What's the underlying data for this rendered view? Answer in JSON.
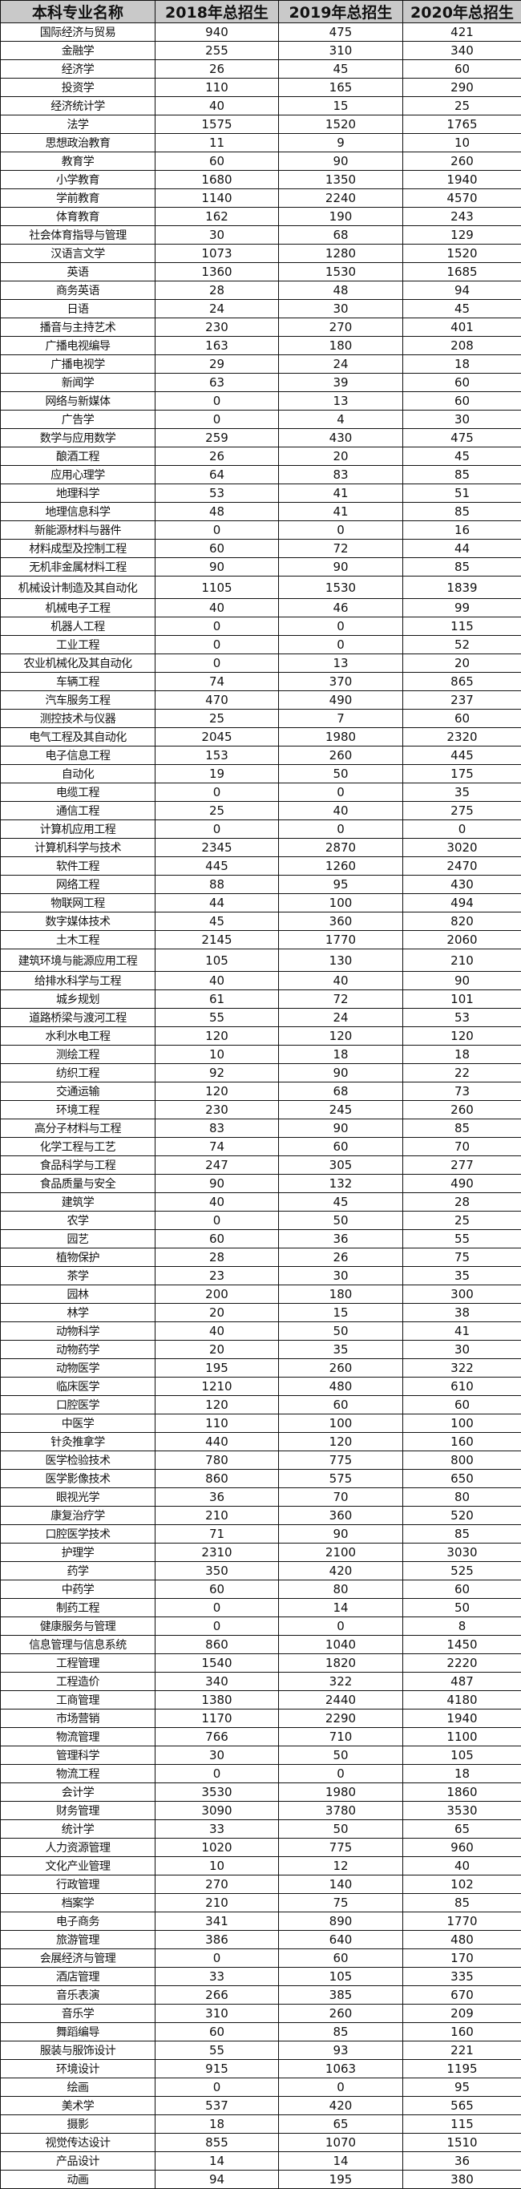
{
  "table": {
    "headers": [
      "本科专业名称",
      "2018年总招生",
      "2019年总招生",
      "2020年总招生"
    ],
    "rows": [
      [
        "国际经济与贸易",
        "940",
        "475",
        "421"
      ],
      [
        "金融学",
        "255",
        "310",
        "340"
      ],
      [
        "经济学",
        "26",
        "45",
        "60"
      ],
      [
        "投资学",
        "110",
        "165",
        "290"
      ],
      [
        "经济统计学",
        "40",
        "15",
        "25"
      ],
      [
        "法学",
        "1575",
        "1520",
        "1765"
      ],
      [
        "思想政治教育",
        "11",
        "9",
        "10"
      ],
      [
        "教育学",
        "60",
        "90",
        "260"
      ],
      [
        "小学教育",
        "1680",
        "1350",
        "1940"
      ],
      [
        "学前教育",
        "1140",
        "2240",
        "4570"
      ],
      [
        "体育教育",
        "162",
        "190",
        "243"
      ],
      [
        "社会体育指导与管理",
        "30",
        "68",
        "129"
      ],
      [
        "汉语言文学",
        "1073",
        "1280",
        "1520"
      ],
      [
        "英语",
        "1360",
        "1530",
        "1685"
      ],
      [
        "商务英语",
        "28",
        "48",
        "94"
      ],
      [
        "日语",
        "24",
        "30",
        "45"
      ],
      [
        "播音与主持艺术",
        "230",
        "270",
        "401"
      ],
      [
        "广播电视编导",
        "163",
        "180",
        "208"
      ],
      [
        "广播电视学",
        "29",
        "24",
        "18"
      ],
      [
        "新闻学",
        "63",
        "39",
        "60"
      ],
      [
        "网络与新媒体",
        "0",
        "13",
        "60"
      ],
      [
        "广告学",
        "0",
        "4",
        "30"
      ],
      [
        "数学与应用数学",
        "259",
        "430",
        "475"
      ],
      [
        "酿酒工程",
        "26",
        "20",
        "45"
      ],
      [
        "应用心理学",
        "64",
        "83",
        "85"
      ],
      [
        "地理科学",
        "53",
        "41",
        "51"
      ],
      [
        "地理信息科学",
        "48",
        "41",
        "85"
      ],
      [
        "新能源材料与器件",
        "0",
        "0",
        "16"
      ],
      [
        "材料成型及控制工程",
        "60",
        "72",
        "44"
      ],
      [
        "无机非金属材料工程",
        "90",
        "90",
        "85"
      ],
      [
        "机械设计制造及其自动化",
        "1105",
        "1530",
        "1839"
      ],
      [
        "机械电子工程",
        "40",
        "46",
        "99"
      ],
      [
        "机器人工程",
        "0",
        "0",
        "115"
      ],
      [
        "工业工程",
        "0",
        "0",
        "52"
      ],
      [
        "农业机械化及其自动化",
        "0",
        "13",
        "20"
      ],
      [
        "车辆工程",
        "74",
        "370",
        "865"
      ],
      [
        "汽车服务工程",
        "470",
        "490",
        "237"
      ],
      [
        "测控技术与仪器",
        "25",
        "7",
        "60"
      ],
      [
        "电气工程及其自动化",
        "2045",
        "1980",
        "2320"
      ],
      [
        "电子信息工程",
        "153",
        "260",
        "445"
      ],
      [
        "自动化",
        "19",
        "50",
        "175"
      ],
      [
        "电缆工程",
        "0",
        "0",
        "35"
      ],
      [
        "通信工程",
        "25",
        "40",
        "275"
      ],
      [
        "计算机应用工程",
        "0",
        "0",
        "0"
      ],
      [
        "计算机科学与技术",
        "2345",
        "2870",
        "3020"
      ],
      [
        "软件工程",
        "445",
        "1260",
        "2470"
      ],
      [
        "网络工程",
        "88",
        "95",
        "430"
      ],
      [
        "物联网工程",
        "44",
        "100",
        "494"
      ],
      [
        "数字媒体技术",
        "45",
        "360",
        "820"
      ],
      [
        "土木工程",
        "2145",
        "1770",
        "2060"
      ],
      [
        "建筑环境与能源应用工程",
        "105",
        "130",
        "210"
      ],
      [
        "给排水科学与工程",
        "40",
        "40",
        "90"
      ],
      [
        "城乡规划",
        "61",
        "72",
        "101"
      ],
      [
        "道路桥梁与渡河工程",
        "55",
        "24",
        "53"
      ],
      [
        "水利水电工程",
        "120",
        "120",
        "120"
      ],
      [
        "测绘工程",
        "10",
        "18",
        "18"
      ],
      [
        "纺织工程",
        "92",
        "90",
        "22"
      ],
      [
        "交通运输",
        "120",
        "68",
        "73"
      ],
      [
        "环境工程",
        "230",
        "245",
        "260"
      ],
      [
        "高分子材料与工程",
        "83",
        "90",
        "85"
      ],
      [
        "化学工程与工艺",
        "74",
        "60",
        "70"
      ],
      [
        "食品科学与工程",
        "247",
        "305",
        "277"
      ],
      [
        "食品质量与安全",
        "90",
        "132",
        "490"
      ],
      [
        "建筑学",
        "40",
        "45",
        "28"
      ],
      [
        "农学",
        "0",
        "50",
        "25"
      ],
      [
        "园艺",
        "60",
        "36",
        "55"
      ],
      [
        "植物保护",
        "28",
        "26",
        "75"
      ],
      [
        "茶学",
        "23",
        "30",
        "35"
      ],
      [
        "园林",
        "200",
        "180",
        "300"
      ],
      [
        "林学",
        "20",
        "15",
        "38"
      ],
      [
        "动物科学",
        "40",
        "50",
        "41"
      ],
      [
        "动物药学",
        "20",
        "35",
        "30"
      ],
      [
        "动物医学",
        "195",
        "260",
        "322"
      ],
      [
        "临床医学",
        "1210",
        "480",
        "610"
      ],
      [
        "口腔医学",
        "120",
        "60",
        "60"
      ],
      [
        "中医学",
        "110",
        "100",
        "100"
      ],
      [
        "针灸推拿学",
        "440",
        "120",
        "160"
      ],
      [
        "医学检验技术",
        "780",
        "775",
        "800"
      ],
      [
        "医学影像技术",
        "860",
        "575",
        "650"
      ],
      [
        "眼视光学",
        "36",
        "70",
        "80"
      ],
      [
        "康复治疗学",
        "210",
        "360",
        "520"
      ],
      [
        "口腔医学技术",
        "71",
        "90",
        "85"
      ],
      [
        "护理学",
        "2310",
        "2100",
        "3030"
      ],
      [
        "药学",
        "350",
        "420",
        "525"
      ],
      [
        "中药学",
        "60",
        "80",
        "60"
      ],
      [
        "制药工程",
        "0",
        "14",
        "50"
      ],
      [
        "健康服务与管理",
        "0",
        "0",
        "8"
      ],
      [
        "信息管理与信息系统",
        "860",
        "1040",
        "1450"
      ],
      [
        "工程管理",
        "1540",
        "1820",
        "2220"
      ],
      [
        "工程造价",
        "340",
        "322",
        "487"
      ],
      [
        "工商管理",
        "1380",
        "2440",
        "4180"
      ],
      [
        "市场营销",
        "1170",
        "2290",
        "1940"
      ],
      [
        "物流管理",
        "766",
        "710",
        "1100"
      ],
      [
        "管理科学",
        "30",
        "50",
        "105"
      ],
      [
        "物流工程",
        "0",
        "0",
        "18"
      ],
      [
        "会计学",
        "3530",
        "1980",
        "1860"
      ],
      [
        "财务管理",
        "3090",
        "3780",
        "3530"
      ],
      [
        "统计学",
        "33",
        "50",
        "65"
      ],
      [
        "人力资源管理",
        "1020",
        "775",
        "960"
      ],
      [
        "文化产业管理",
        "10",
        "12",
        "40"
      ],
      [
        "行政管理",
        "270",
        "140",
        "102"
      ],
      [
        "档案学",
        "210",
        "75",
        "85"
      ],
      [
        "电子商务",
        "341",
        "890",
        "1770"
      ],
      [
        "旅游管理",
        "386",
        "640",
        "480"
      ],
      [
        "会展经济与管理",
        "0",
        "60",
        "170"
      ],
      [
        "酒店管理",
        "33",
        "105",
        "335"
      ],
      [
        "音乐表演",
        "266",
        "385",
        "670"
      ],
      [
        "音乐学",
        "310",
        "260",
        "209"
      ],
      [
        "舞蹈编导",
        "60",
        "85",
        "160"
      ],
      [
        "服装与服饰设计",
        "55",
        "93",
        "221"
      ],
      [
        "环境设计",
        "915",
        "1063",
        "1195"
      ],
      [
        "绘画",
        "0",
        "0",
        "95"
      ],
      [
        "美术学",
        "537",
        "420",
        "565"
      ],
      [
        "摄影",
        "18",
        "65",
        "115"
      ],
      [
        "视觉传达设计",
        "855",
        "1070",
        "1510"
      ],
      [
        "产品设计",
        "14",
        "14",
        "36"
      ],
      [
        "动画",
        "94",
        "195",
        "380"
      ]
    ]
  }
}
